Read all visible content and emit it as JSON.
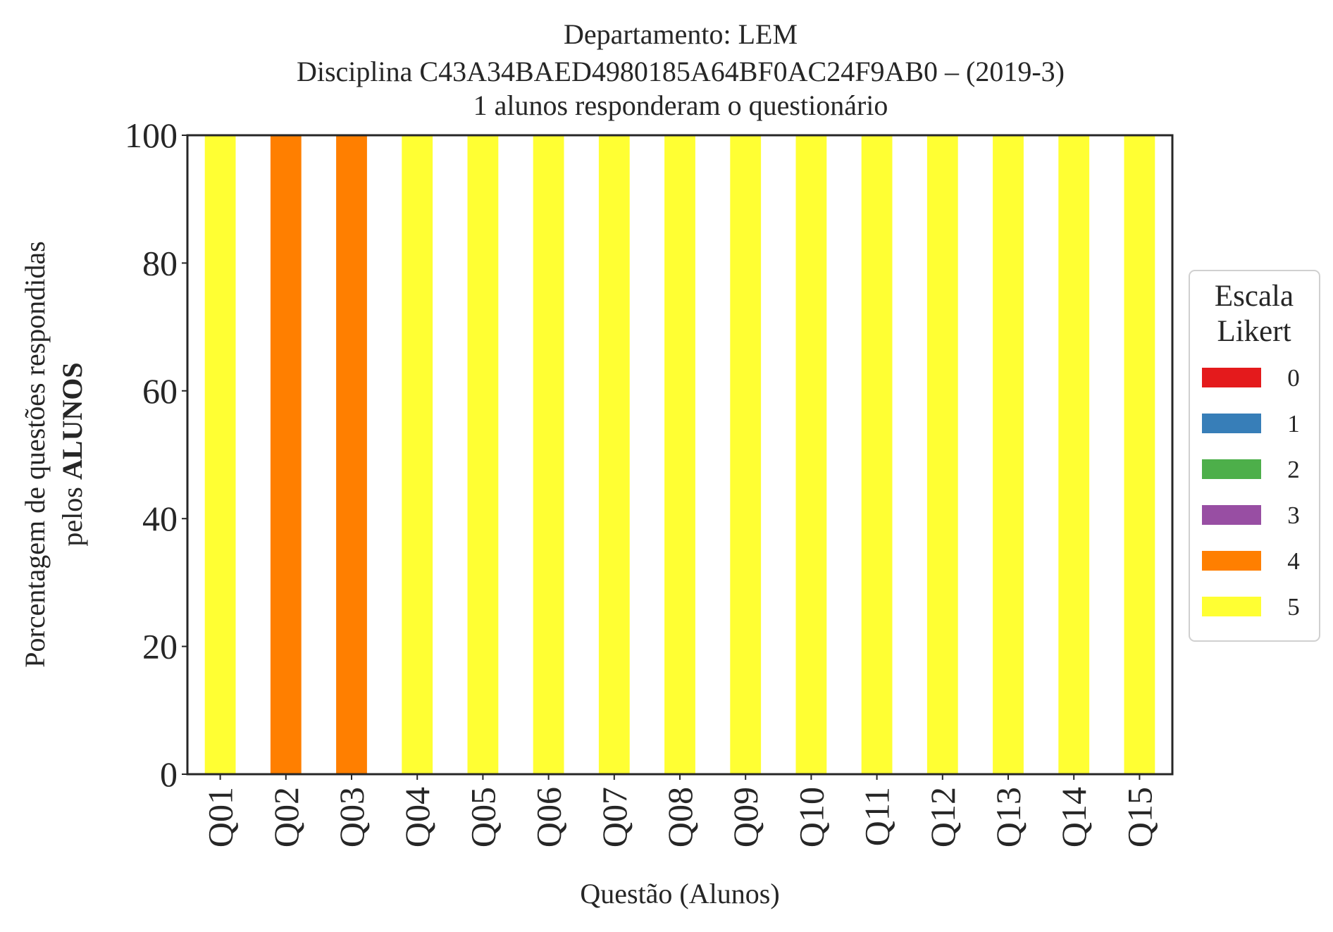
{
  "chart_data": {
    "type": "bar",
    "stacked": true,
    "title_lines": [
      "Departamento: LEM",
      "Disciplina C43A34BAED4980185A64BF0AC24F9AB0 – (2019-3)",
      "1 alunos responderam o questionário"
    ],
    "xlabel": "Questão (Alunos)",
    "ylabel_line1": "Porcentagem de questões respondidas",
    "ylabel_line2_prefix": "pelos ",
    "ylabel_line2_bold": "ALUNOS",
    "ylim": [
      0,
      100
    ],
    "yticks": [
      "0",
      "20",
      "40",
      "60",
      "80",
      "100"
    ],
    "categories": [
      "Q01",
      "Q02",
      "Q03",
      "Q04",
      "Q05",
      "Q06",
      "Q07",
      "Q08",
      "Q09",
      "Q10",
      "Q11",
      "Q12",
      "Q13",
      "Q14",
      "Q15"
    ],
    "series": [
      {
        "name": "0",
        "color": "#e41a1c",
        "values": [
          0,
          0,
          0,
          0,
          0,
          0,
          0,
          0,
          0,
          0,
          0,
          0,
          0,
          0,
          0
        ]
      },
      {
        "name": "1",
        "color": "#377eb8",
        "values": [
          0,
          0,
          0,
          0,
          0,
          0,
          0,
          0,
          0,
          0,
          0,
          0,
          0,
          0,
          0
        ]
      },
      {
        "name": "2",
        "color": "#4daf4a",
        "values": [
          0,
          0,
          0,
          0,
          0,
          0,
          0,
          0,
          0,
          0,
          0,
          0,
          0,
          0,
          0
        ]
      },
      {
        "name": "3",
        "color": "#984ea3",
        "values": [
          0,
          0,
          0,
          0,
          0,
          0,
          0,
          0,
          0,
          0,
          0,
          0,
          0,
          0,
          0
        ]
      },
      {
        "name": "4",
        "color": "#ff7f00",
        "values": [
          0,
          100,
          100,
          0,
          0,
          0,
          0,
          0,
          0,
          0,
          0,
          0,
          0,
          0,
          0
        ]
      },
      {
        "name": "5",
        "color": "#ffff33",
        "values": [
          100,
          0,
          0,
          100,
          100,
          100,
          100,
          100,
          100,
          100,
          100,
          100,
          100,
          100,
          100
        ]
      }
    ],
    "legend": {
      "title_lines": [
        "Escala",
        "Likert"
      ],
      "placement": "right-center"
    },
    "grid": false
  }
}
